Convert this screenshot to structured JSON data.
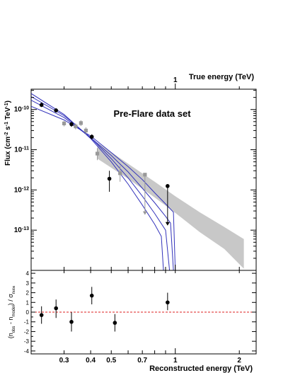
{
  "chart_data": [
    {
      "type": "scatter",
      "title": "Pre-Flare data set",
      "xscale": "log",
      "yscale": "log",
      "xlim": [
        0.21,
        2.4
      ],
      "ylim": [
        1e-14,
        3.2e-10
      ],
      "top_axis_label": "True energy (TeV)",
      "top_axis_tick_labels": [
        "1"
      ],
      "ylabel_parts": {
        "flux": "Flux (cm",
        "sup1": "-2",
        "mid": " s",
        "sup2": "-1",
        "tev": " TeV",
        "sup3": "-1",
        "close": ")"
      },
      "y_tick_labels": [
        {
          "mant": "10",
          "exp": "-10",
          "v": 1e-10
        },
        {
          "mant": "10",
          "exp": "-11",
          "v": 1e-11
        },
        {
          "mant": "10",
          "exp": "-12",
          "v": 1e-12
        },
        {
          "mant": "10",
          "exp": "-13",
          "v": 1e-13
        }
      ],
      "series": [
        {
          "marker": "circle",
          "color": "#000000",
          "points": [
            {
              "x": 0.235,
              "y": 1.3e-10,
              "ylo": 1.15e-10,
              "yhi": 1.5e-10
            },
            {
              "x": 0.275,
              "y": 9.5e-11,
              "ylo": 8.5e-11,
              "yhi": 1.07e-10
            },
            {
              "x": 0.325,
              "y": 4.3e-11,
              "ylo": 3.7e-11,
              "yhi": 5e-11
            },
            {
              "x": 0.405,
              "y": 2.1e-11,
              "ylo": 1.8e-11,
              "yhi": 2.4e-11
            },
            {
              "x": 0.49,
              "y": 1.9e-12,
              "ylo": 9e-13,
              "yhi": 3e-12
            },
            {
              "x": 0.92,
              "y": 1.25e-12,
              "ylo": 1.3e-13,
              "yhi": 1.25e-12,
              "upper_limit": true
            }
          ]
        },
        {
          "marker": "square",
          "color": "#999999",
          "points": [
            {
              "x": 0.3,
              "y": 4.5e-11,
              "ylo": 3.8e-11,
              "yhi": 5.2e-11
            },
            {
              "x": 0.34,
              "y": 3.8e-11,
              "ylo": 3.2e-11,
              "yhi": 4.5e-11
            },
            {
              "x": 0.36,
              "y": 4.6e-11,
              "ylo": 3.9e-11,
              "yhi": 5.4e-11
            },
            {
              "x": 0.38,
              "y": 3e-11,
              "ylo": 2.4e-11,
              "yhi": 3.6e-11
            },
            {
              "x": 0.43,
              "y": 8e-12,
              "ylo": 5.5e-12,
              "yhi": 1.1e-11
            },
            {
              "x": 0.55,
              "y": 2.6e-12,
              "ylo": 1.6e-12,
              "yhi": 4e-12
            },
            {
              "x": 0.72,
              "y": 2.4e-12,
              "ylo": 2.4e-13,
              "yhi": 2.4e-12,
              "upper_limit": true
            }
          ]
        }
      ],
      "model_curves": {
        "color": "#3333bb",
        "curves": [
          [
            [
              0.21,
              2.5e-10
            ],
            [
              0.3,
              7.5e-11
            ],
            [
              0.4,
              1.9e-11
            ],
            [
              0.5,
              5e-12
            ],
            [
              0.6,
              1.4e-12
            ],
            [
              0.7,
              4.2e-13
            ],
            [
              0.8,
              1.4e-13
            ],
            [
              0.86,
              7e-14
            ],
            [
              0.88,
              1e-14
            ]
          ],
          [
            [
              0.21,
              2.1e-10
            ],
            [
              0.3,
              7e-11
            ],
            [
              0.4,
              2e-11
            ],
            [
              0.5,
              6e-12
            ],
            [
              0.6,
              2e-12
            ],
            [
              0.7,
              7e-13
            ],
            [
              0.8,
              2.6e-13
            ],
            [
              0.9,
              1e-13
            ],
            [
              0.94,
              1e-14
            ]
          ],
          [
            [
              0.21,
              1.7e-10
            ],
            [
              0.3,
              6.3e-11
            ],
            [
              0.4,
              2e-11
            ],
            [
              0.5,
              7.2e-12
            ],
            [
              0.6,
              2.8e-12
            ],
            [
              0.7,
              1.1e-12
            ],
            [
              0.8,
              4.8e-13
            ],
            [
              0.9,
              2.2e-13
            ],
            [
              0.95,
              1.5e-13
            ],
            [
              0.98,
              1e-14
            ]
          ],
          [
            [
              0.21,
              1.2e-10
            ],
            [
              0.3,
              5.5e-11
            ],
            [
              0.4,
              2.2e-11
            ],
            [
              0.5,
              8.5e-12
            ],
            [
              0.6,
              3.8e-12
            ],
            [
              0.7,
              1.8e-12
            ],
            [
              0.8,
              8.5e-13
            ],
            [
              0.9,
              4.5e-13
            ],
            [
              0.98,
              2.8e-13
            ],
            [
              1.0,
              1e-14
            ]
          ]
        ]
      },
      "band": {
        "color": "#c8c8c8",
        "x": [
          0.43,
          0.6,
          0.8,
          1.0,
          1.3,
          1.7,
          2.1
        ],
        "upper": [
          1.5e-11,
          4.5e-12,
          1.6e-12,
          7e-13,
          2.8e-13,
          1.2e-13,
          6e-14
        ],
        "lower": [
          6e-12,
          1.9e-12,
          6.5e-13,
          2.7e-13,
          9e-14,
          3.4e-14,
          1.1e-14
        ]
      }
    },
    {
      "type": "scatter",
      "xscale": "log",
      "xlim": [
        0.21,
        2.4
      ],
      "ylim": [
        -4.3,
        4.3
      ],
      "xlabel": "Reconstructed energy (TeV)",
      "ylabel_parts": {
        "open": "(n",
        "sub1": "obs",
        "minus": " - n",
        "sub2": "model",
        "close": ") / σ",
        "sub3": "n",
        "sub4": "obs"
      },
      "x_tick_labels": [
        {
          "v": 0.3,
          "t": "0.3"
        },
        {
          "v": 0.4,
          "t": "0.4"
        },
        {
          "v": 0.5,
          "t": "0.5"
        },
        {
          "v": 0.7,
          "t": "0.7"
        },
        {
          "v": 1,
          "t": "1"
        },
        {
          "v": 2,
          "t": "2"
        }
      ],
      "y_tick_labels": [
        "-4",
        "-3",
        "-2",
        "-1",
        "0",
        "1",
        "2",
        "3",
        "4"
      ],
      "zero_line_color": "#dd2222",
      "points": [
        {
          "x": 0.235,
          "y": -0.3,
          "ylo": -1.2,
          "yhi": 0.6
        },
        {
          "x": 0.275,
          "y": 0.4,
          "ylo": -0.6,
          "yhi": 1.3
        },
        {
          "x": 0.325,
          "y": -1.0,
          "ylo": -2.0,
          "yhi": 0.0
        },
        {
          "x": 0.405,
          "y": 1.7,
          "ylo": 0.8,
          "yhi": 2.6
        },
        {
          "x": 0.52,
          "y": -1.1,
          "ylo": -2.0,
          "yhi": -0.2
        },
        {
          "x": 0.92,
          "y": 1.0,
          "ylo": 0.2,
          "yhi": 2.0
        }
      ]
    }
  ]
}
